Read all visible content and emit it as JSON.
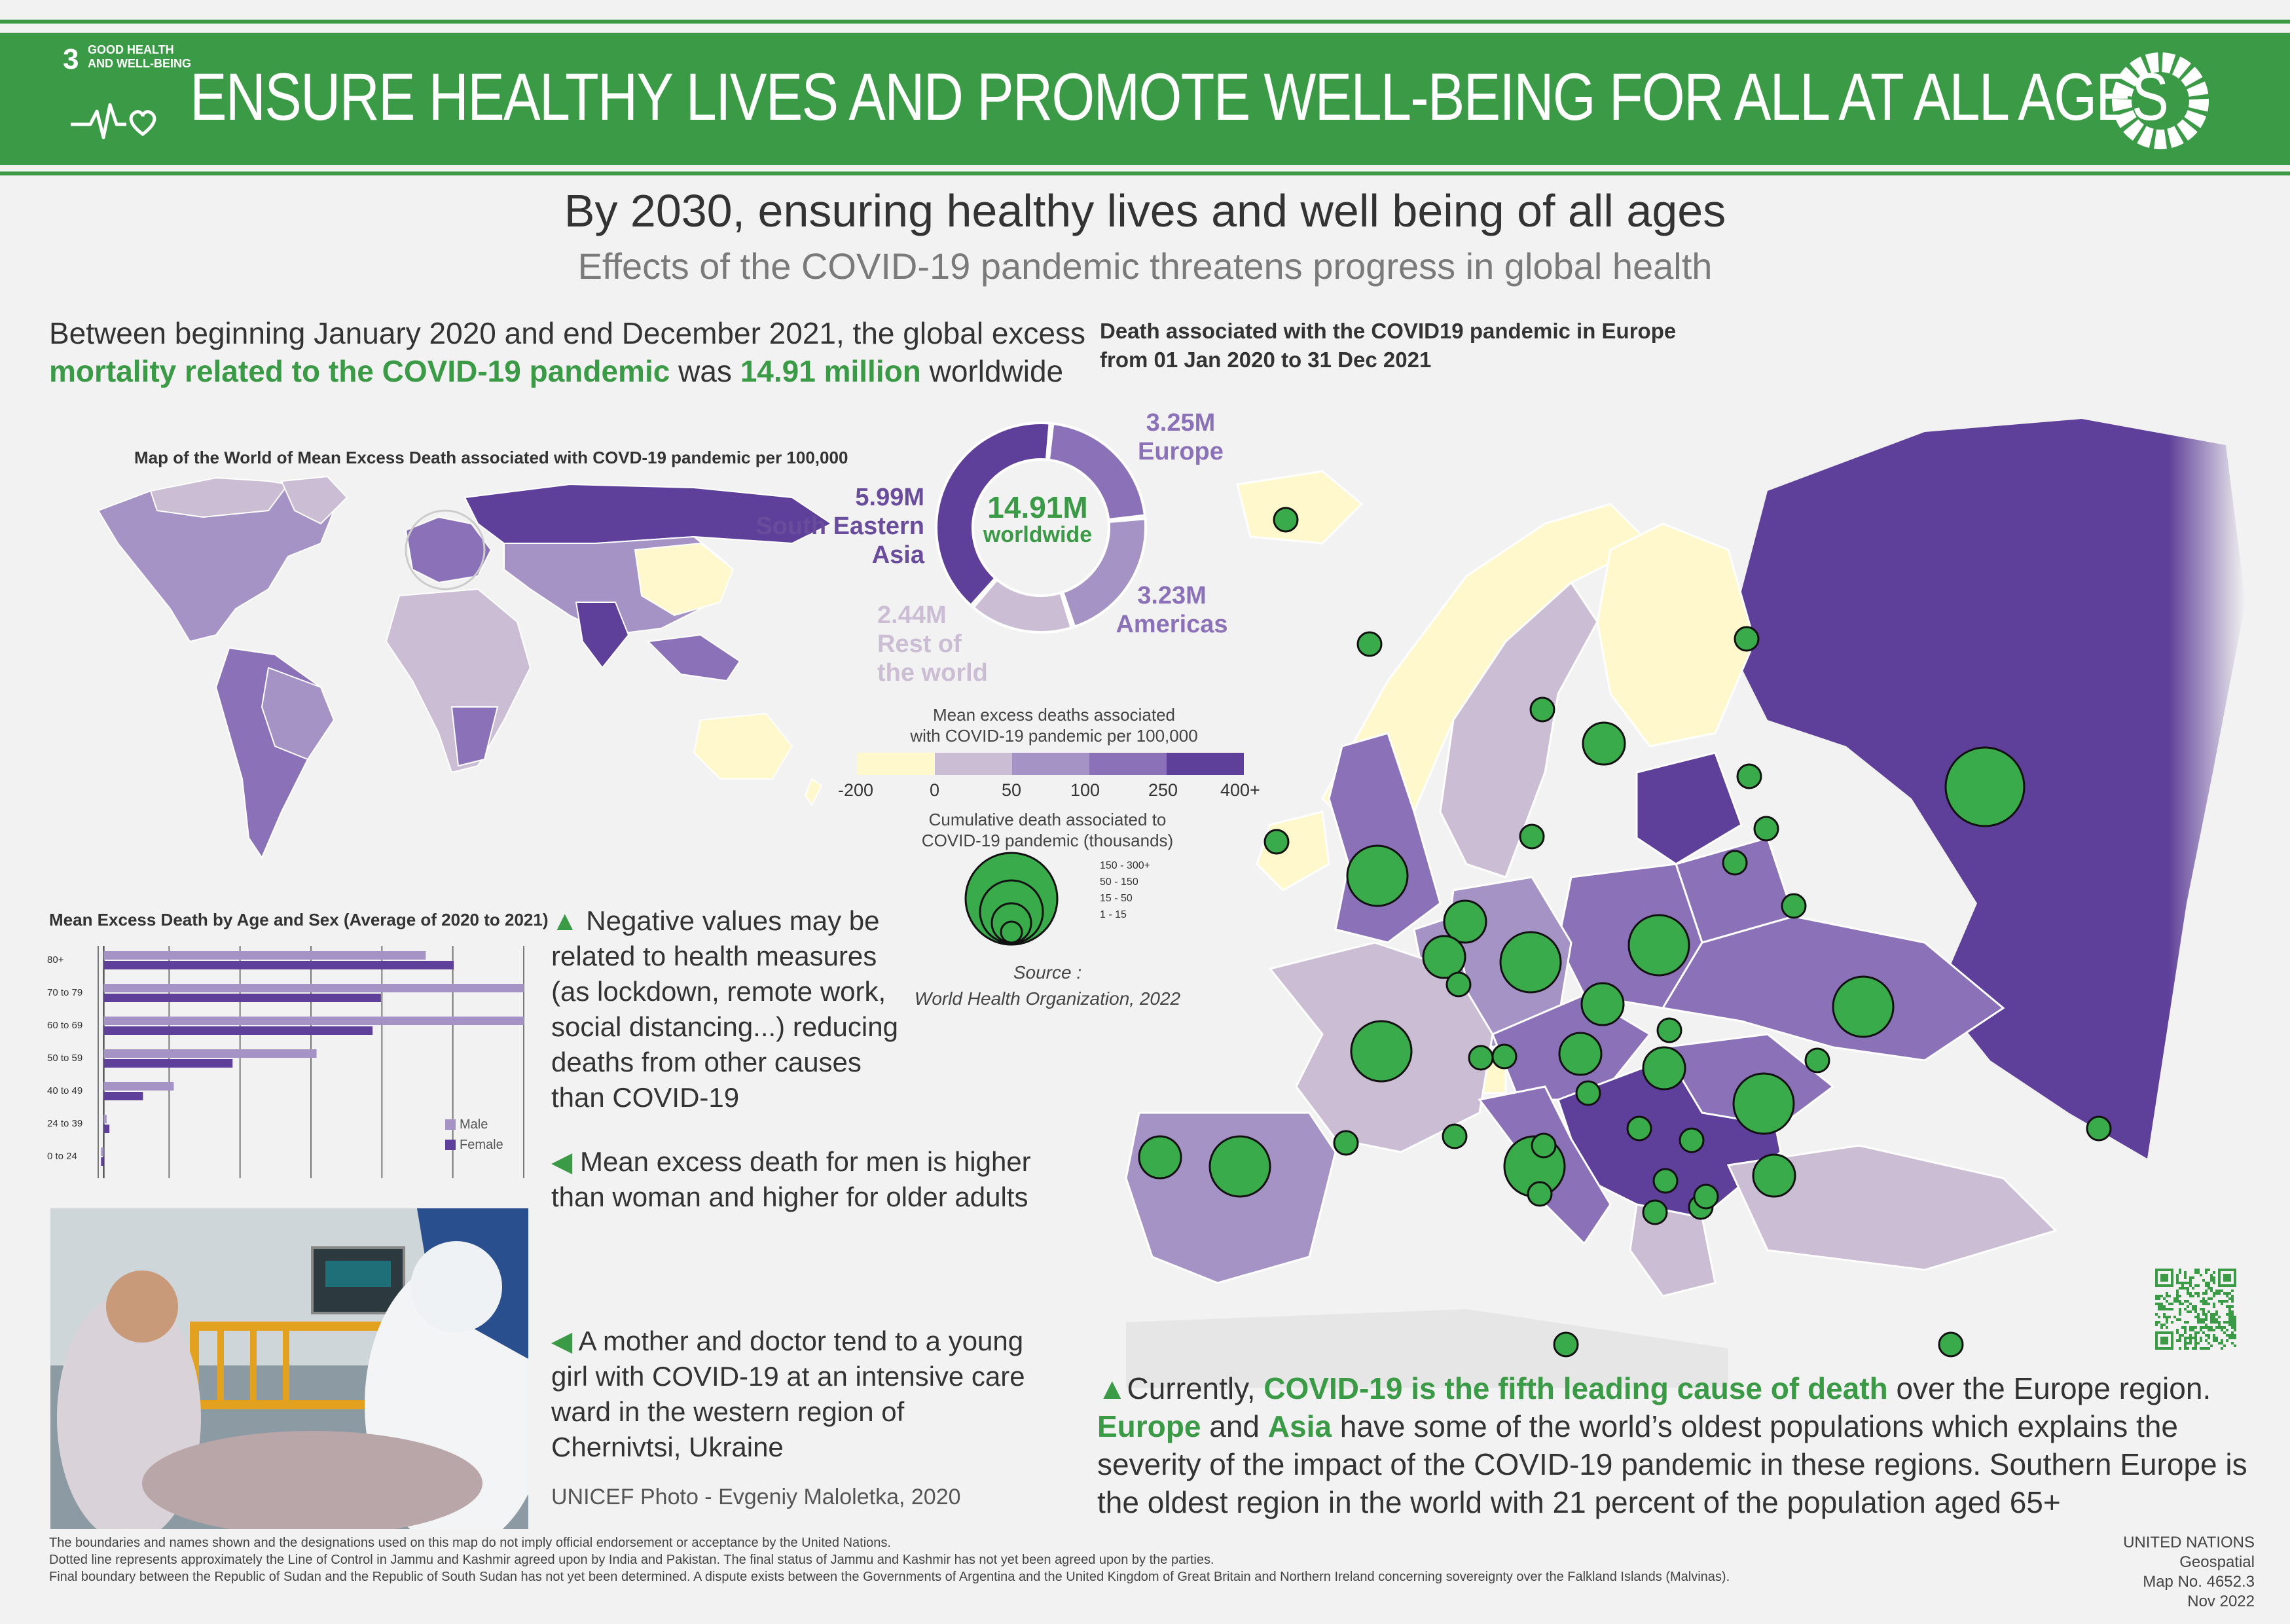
{
  "header": {
    "goal_number": "3",
    "goal_label_line1": "GOOD HEALTH",
    "goal_label_line2": "AND WELL-BEING",
    "title": "ENSURE HEALTHY LIVES AND PROMOTE WELL-BEING FOR ALL AT ALL AGES",
    "brand_color": "#3a9a46"
  },
  "subtitle": "By 2030, ensuring healthy lives and well being of all ages",
  "subtitle2": "Effects of the COVID-19 pandemic threatens progress in global health",
  "intro": {
    "part1": "Between beginning January 2020 and end December 2021, the global excess ",
    "highlight1": "mortality related to the COVID-19 pandemic",
    "part2": " was ",
    "highlight2": "14.91 million",
    "part3": " worldwide"
  },
  "world_map_title": "Map of the World of Mean Excess Death associated with COVD-19 pandemic per 100,000",
  "donut": {
    "center_value": "14.91M",
    "center_label": "worldwide",
    "segments": [
      {
        "value_label": "3.25M",
        "name": "Europe",
        "value": 3.25,
        "color": "#8b72b8"
      },
      {
        "value_label": "3.23M",
        "name": "Americas",
        "value": 3.23,
        "color": "#a493c4"
      },
      {
        "value_label": "2.44M",
        "name_line1": "Rest of",
        "name_line2": "the world",
        "value": 2.44,
        "color": "#cbbdd3"
      },
      {
        "value_label": "5.99M",
        "name_line1": "South Eastern",
        "name_line2": "Asia",
        "value": 5.99,
        "color": "#5e3f99"
      }
    ]
  },
  "legend": {
    "title_line1": "Mean excess deaths associated",
    "title_line2": "with COVID-19 pandemic per 100,000",
    "ticks": [
      "-200",
      "0",
      "50",
      "100",
      "250",
      "400+"
    ],
    "colors": [
      "#fff8cc",
      "#cbbdd3",
      "#a493c4",
      "#8b72b8",
      "#5e3f99"
    ],
    "cum_title_line1": "Cumulative death associated to",
    "cum_title_line2": "COVID-19 pandemic (thousands)",
    "cum_classes": [
      "150 - 300+",
      "50 - 150",
      "15 - 50",
      "1 - 15"
    ],
    "source_line1": "Source :",
    "source_line2": "World Health Organization, 2022"
  },
  "europe": {
    "title_line1": "Death associated with the COVID19 pandemic in Europe",
    "title_line2": "from 01 Jan 2020 to 31 Dec 2021"
  },
  "age_chart": {
    "title": "Mean Excess Death by Age and Sex (Average of 2020 to 2021)",
    "categories": [
      "80+",
      "70 to 79",
      "60 to 69",
      "50 to 59",
      "40 to 49",
      "24 to 39",
      "0 to 24"
    ],
    "legend_male": "Male",
    "legend_female": "Female",
    "male_color": "#a493c4",
    "female_color": "#5e3f99",
    "chart_data": {
      "type": "bar",
      "orientation": "horizontal",
      "categories": [
        "80+",
        "70 to 79",
        "60 to 69",
        "50 to 59",
        "40 to 49",
        "24 to 39",
        "0 to 24"
      ],
      "series": [
        {
          "name": "Male",
          "values": [
            1150,
            1500,
            1500,
            760,
            250,
            10,
            -10
          ]
        },
        {
          "name": "Female",
          "values": [
            1250,
            990,
            960,
            460,
            140,
            20,
            -10
          ]
        }
      ],
      "xlim": [
        -20,
        1500
      ],
      "grid": true,
      "legend": "bottom-right"
    }
  },
  "notes": {
    "n1": "Negative values may be related to health measures (as lockdown, remote work, social distancing...) reducing deaths from other causes than COVID-19",
    "n2": "Mean excess death for men is higher than woman and higher for older adults",
    "n3": "A mother and doctor tend to a young girl with COVID-19 at an intensive care ward in the western region of Chernivtsi, Ukraine",
    "credit": "UNICEF Photo - Evgeniy Maloletka, 2020",
    "n1_icon": "triangle-up-icon",
    "n2_icon": "triangle-left-icon",
    "n3_icon": "triangle-left-icon"
  },
  "bottom": {
    "part1": "Currently, ",
    "highlight1": "COVID-19 is the fifth leading cause of death",
    "part2": " over the Europe region. ",
    "highlight2": "Europe",
    "part3": " and ",
    "highlight3": "Asia",
    "part4": " have some of the world’s oldest populations which explains the severity of the impact of the COVID-19 pandemic in these regions. Southern Europe is the oldest region in the world with 21 percent of the population aged 65+"
  },
  "disclaimer": {
    "line1": "The boundaries and names shown and the designations used on this map do not imply official endorsement or acceptance by the United Nations.",
    "line2": "Dotted line represents approximately the Line of Control in Jammu and Kashmir agreed upon by India and Pakistan. The final status of Jammu and Kashmir has not yet been agreed upon by the parties.",
    "line3": "Final boundary between the Republic of Sudan and the Republic of South Sudan has not yet been determined. A dispute exists between the Governments of Argentina and the United Kingdom of Great Britain and Northern Ireland concerning sovereignty over the Falkland Islands (Malvinas)."
  },
  "un_credit": {
    "line1": "UNITED NATIONS Geospatial",
    "line2": "Map No. 4652.3",
    "line3": "Nov 2022"
  }
}
